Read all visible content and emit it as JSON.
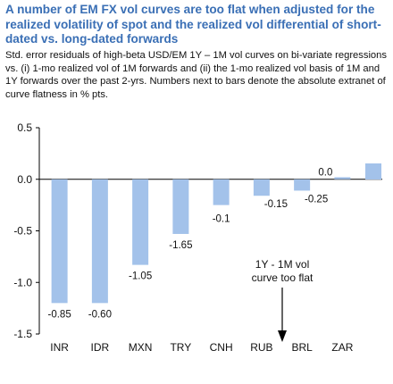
{
  "title": "A number of EM FX vol curves are too flat when adjusted for the realized volatility of spot and the realized vol differential of short-dated vs. long-dated forwards",
  "subtitle": "Std. error residuals of high-beta USD/EM 1Y – 1M vol curves on bi-variate regressions vs. (i) 1-mo realized vol of 1M forwards and (ii) the 1-mo realized vol basis of 1M and 1Y forwards over the past 2-yrs. Numbers next to bars denote the absolute extranet of curve flatness in % pts.",
  "annotation": {
    "line1": "1Y - 1M vol",
    "line2": "curve too flat"
  },
  "colors": {
    "bar": "#a3c2ea",
    "title": "#3a6fb5",
    "axis": "#000000"
  },
  "chart_data": {
    "type": "bar",
    "categories": [
      "INR",
      "IDR",
      "MXN",
      "TRY",
      "CNH",
      "RUB",
      "BRL",
      "ZAR"
    ],
    "values": [
      -1.2,
      -1.2,
      -0.83,
      -0.53,
      -0.25,
      -0.16,
      -0.11,
      0.02
    ],
    "data_labels": [
      "-0.85",
      "-0.60",
      "-1.05",
      "-1.65",
      "-0.1",
      "-0.15",
      "-0.25",
      "0.0"
    ],
    "ylim": [
      -1.5,
      0.5
    ],
    "yticks": [
      "0.5",
      "0.0",
      "-0.5",
      "-1.0",
      "-1.5"
    ],
    "ytick_values": [
      0.5,
      0.0,
      -0.5,
      -1.0,
      -1.5
    ],
    "legend_swatch": true,
    "grid": false
  }
}
